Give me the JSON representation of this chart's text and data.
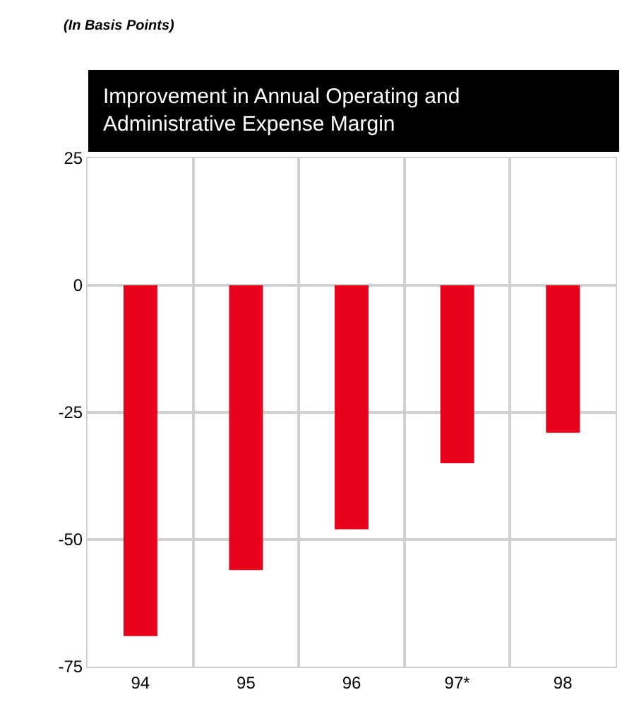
{
  "chart_data": {
    "type": "bar",
    "title": "Improvement in Annual Operating and Administrative Expense Margin",
    "subtitle": "(In Basis Points)",
    "categories": [
      "94",
      "95",
      "96",
      "97*",
      "98"
    ],
    "values": [
      -69,
      -56,
      -48,
      -35,
      -29
    ],
    "color": "#e8001c",
    "ylim": [
      -75,
      25
    ],
    "yticks": [
      -75,
      -50,
      -25,
      0,
      25
    ],
    "grid": true
  }
}
